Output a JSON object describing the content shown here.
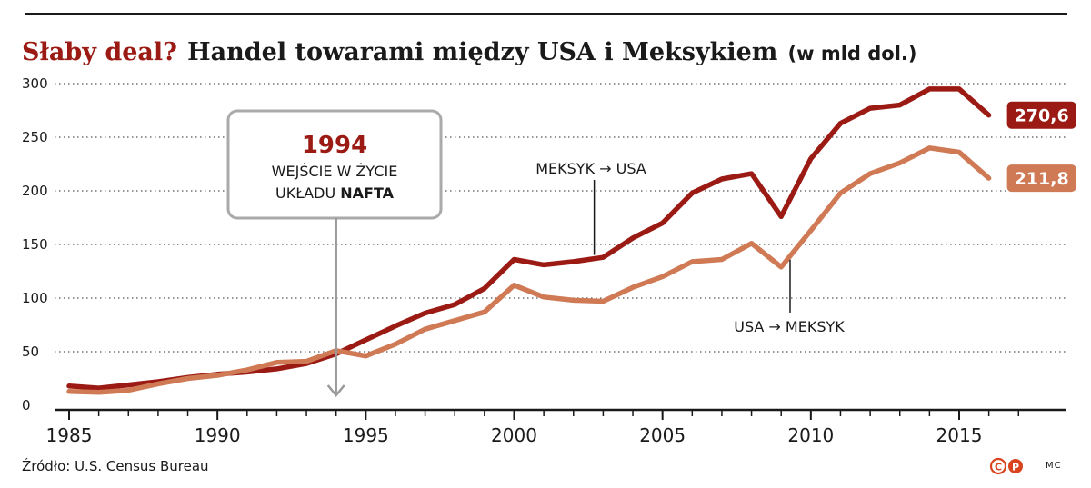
{
  "header": {
    "title_lead": "Słaby deal?",
    "title_main": "Handel towarami między USA i Meksykiem",
    "title_unit": "(w mld dol.)"
  },
  "annotation": {
    "year": "1994",
    "line1": "WEJŚCIE W ŻYCIE",
    "line2_prefix": "UKŁADU ",
    "line2_bold": "NAFTA",
    "at_x": 1994
  },
  "footer": {
    "source": "Źródło: U.S. Census Bureau",
    "initials": "MC",
    "logo_letters": [
      "C",
      "P"
    ]
  },
  "colors": {
    "mexico_to_usa": "#9b1b14",
    "usa_to_mexico": "#cf7a55",
    "grid": "#555555",
    "axis": "#1a1a1a",
    "box_border": "#aaaaaa",
    "pointer": "#9a9a9a",
    "logo": "#d9441e"
  },
  "chart_data": {
    "type": "line",
    "title": "Handel towarami między USA i Meksykiem",
    "xlim": [
      1985,
      2018
    ],
    "ylim": [
      0,
      300
    ],
    "x_ticks": [
      1985,
      1990,
      1995,
      2000,
      2005,
      2010,
      2015
    ],
    "y_ticks": [
      0,
      50,
      100,
      150,
      200,
      250,
      300
    ],
    "grid": "horizontal dotted",
    "x": [
      1985,
      1986,
      1987,
      1988,
      1989,
      1990,
      1991,
      1992,
      1993,
      1994,
      1995,
      1996,
      1997,
      1998,
      1999,
      2000,
      2001,
      2002,
      2003,
      2004,
      2005,
      2006,
      2007,
      2008,
      2009,
      2010,
      2011,
      2012,
      2013,
      2014,
      2015,
      2016
    ],
    "series": [
      {
        "name": "MEKSYK → USA",
        "values": [
          18,
          16,
          19,
          22,
          26,
          29,
          31,
          34,
          39,
          48,
          61,
          74,
          86,
          94,
          109,
          136,
          131,
          134,
          138,
          156,
          170,
          198,
          211,
          216,
          176,
          230,
          263,
          277,
          280,
          295,
          295,
          270.6
        ],
        "end_label": "270,6"
      },
      {
        "name": "USA → MEKSYK",
        "values": [
          13,
          12,
          14,
          20,
          25,
          28,
          33,
          40,
          41,
          51,
          46,
          57,
          71,
          79,
          87,
          112,
          101,
          98,
          97,
          110,
          120,
          134,
          136,
          151,
          129,
          163,
          198,
          216,
          226,
          240,
          236,
          211.8
        ],
        "end_label": "211,8"
      }
    ]
  },
  "series_labels": {
    "mexico": {
      "text": "MEKSYK → USA",
      "anchor_x": 2002.7
    },
    "usa": {
      "text": "USA → MEKSYK",
      "anchor_x": 2009.3
    }
  }
}
